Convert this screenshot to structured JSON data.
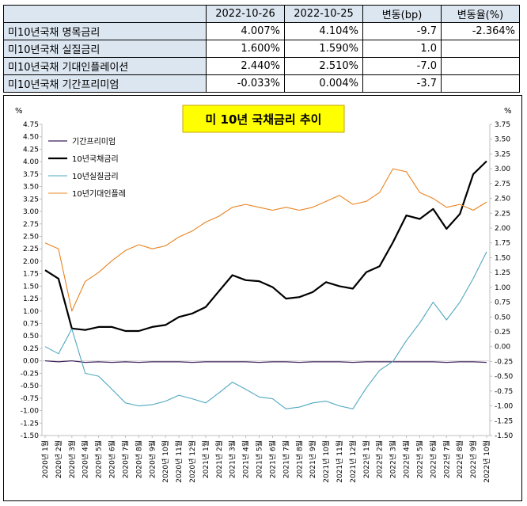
{
  "table": {
    "headers": [
      "",
      "2022-10-26",
      "2022-10-25",
      "변동(bp)",
      "변동율(%)"
    ],
    "rows": [
      {
        "label": "미10년국채 명목금리",
        "d1": "4.007%",
        "d2": "4.104%",
        "bp": "-9.7",
        "pct": "-2.364%"
      },
      {
        "label": "미10년국채 실질금리",
        "d1": "1.600%",
        "d2": "1.590%",
        "bp": "1.0",
        "pct": ""
      },
      {
        "label": "미10년국채 기대인플레이션",
        "d1": "2.440%",
        "d2": "2.510%",
        "bp": "-7.0",
        "pct": ""
      },
      {
        "label": "미10년국채 기간프리미엄",
        "d1": "-0.033%",
        "d2": "0.004%",
        "bp": "-3.7",
        "pct": ""
      }
    ]
  },
  "chart_data": {
    "type": "line",
    "title": "미 10년 국채금리 추이",
    "left_unit": "%",
    "right_unit": "%",
    "ylim_left": [
      -1.5,
      4.75
    ],
    "ylim_right": [
      -1.5,
      3.75
    ],
    "left_ticks": [
      "4.75",
      "4.50",
      "4.25",
      "4.00",
      "3.75",
      "3.50",
      "3.25",
      "3.00",
      "2.75",
      "2.50",
      "2.25",
      "2.00",
      "1.75",
      "1.50",
      "1.25",
      "1.00",
      "0.75",
      "0.50",
      "0.25",
      "0.00",
      "-0.25",
      "-0.50",
      "-0.75",
      "-1.00",
      "-1.25",
      "-1.50"
    ],
    "right_ticks": [
      "3.75",
      "3.50",
      "3.25",
      "3.00",
      "2.75",
      "2.50",
      "2.25",
      "2.00",
      "1.75",
      "1.50",
      "1.25",
      "1.00",
      "0.75",
      "0.50",
      "0.25",
      "0.00",
      "-0.25",
      "-0.50",
      "-0.75",
      "-1.00",
      "-1.25",
      "-1.50"
    ],
    "x_labels": [
      "2020년 1월",
      "2020년 2월",
      "2020년 3월",
      "2020년 4월",
      "2020년 5월",
      "2020년 6월",
      "2020년 7월",
      "2020년 8월",
      "2020년 9월",
      "2020년 10월",
      "2020년 11월",
      "2020년 12월",
      "2021년 1월",
      "2021년 2월",
      "2021년 3월",
      "2021년 4월",
      "2021년 5월",
      "2021년 6월",
      "2021년 7월",
      "2021년 8월",
      "2021년 9월",
      "2021년 10월",
      "2021년 11월",
      "2021년 12월",
      "2022년 1월",
      "2022년 2월",
      "2022년 3월",
      "2022년 4월",
      "2022년 5월",
      "2022년 6월",
      "2022년 7월",
      "2022년 8월",
      "2022년 9월",
      "2022년 10월"
    ],
    "legend_position": "top-left",
    "grid": false,
    "series": [
      {
        "name": "기간프리미엄",
        "axis": "left",
        "color": "#3f1f5a",
        "width": 1.2,
        "values": [
          0.0,
          -0.02,
          0.0,
          -0.03,
          -0.02,
          -0.03,
          -0.02,
          -0.03,
          -0.02,
          -0.02,
          -0.02,
          -0.03,
          -0.02,
          -0.02,
          -0.02,
          -0.02,
          -0.03,
          -0.02,
          -0.02,
          -0.03,
          -0.02,
          -0.02,
          -0.02,
          -0.03,
          -0.02,
          -0.02,
          -0.02,
          -0.02,
          -0.02,
          -0.02,
          -0.03,
          -0.02,
          -0.02,
          -0.03
        ]
      },
      {
        "name": "10년국채금리",
        "axis": "left",
        "color": "#000000",
        "width": 2.2,
        "values": [
          1.82,
          1.65,
          0.65,
          0.62,
          0.68,
          0.68,
          0.6,
          0.6,
          0.68,
          0.72,
          0.88,
          0.95,
          1.08,
          1.4,
          1.72,
          1.62,
          1.6,
          1.48,
          1.25,
          1.28,
          1.38,
          1.58,
          1.5,
          1.45,
          1.78,
          1.9,
          2.38,
          2.92,
          2.85,
          3.05,
          2.65,
          2.95,
          3.75,
          4.01
        ]
      },
      {
        "name": "10년실질금리",
        "axis": "right",
        "color": "#4fa8be",
        "width": 1.1,
        "values": [
          0.0,
          -0.12,
          0.3,
          -0.45,
          -0.5,
          -0.72,
          -0.95,
          -1.0,
          -0.98,
          -0.92,
          -0.82,
          -0.88,
          -0.95,
          -0.78,
          -0.6,
          -0.72,
          -0.85,
          -0.88,
          -1.05,
          -1.02,
          -0.95,
          -0.92,
          -1.0,
          -1.05,
          -0.7,
          -0.4,
          -0.25,
          0.1,
          0.4,
          0.75,
          0.45,
          0.75,
          1.15,
          1.6
        ]
      },
      {
        "name": "10년기대인플레",
        "axis": "right",
        "color": "#e8831f",
        "width": 1.1,
        "values": [
          1.75,
          1.65,
          0.6,
          1.1,
          1.25,
          1.45,
          1.62,
          1.72,
          1.65,
          1.7,
          1.85,
          1.95,
          2.1,
          2.2,
          2.35,
          2.4,
          2.35,
          2.3,
          2.35,
          2.3,
          2.35,
          2.45,
          2.55,
          2.4,
          2.45,
          2.6,
          3.0,
          2.95,
          2.6,
          2.5,
          2.35,
          2.4,
          2.3,
          2.44
        ]
      }
    ]
  }
}
